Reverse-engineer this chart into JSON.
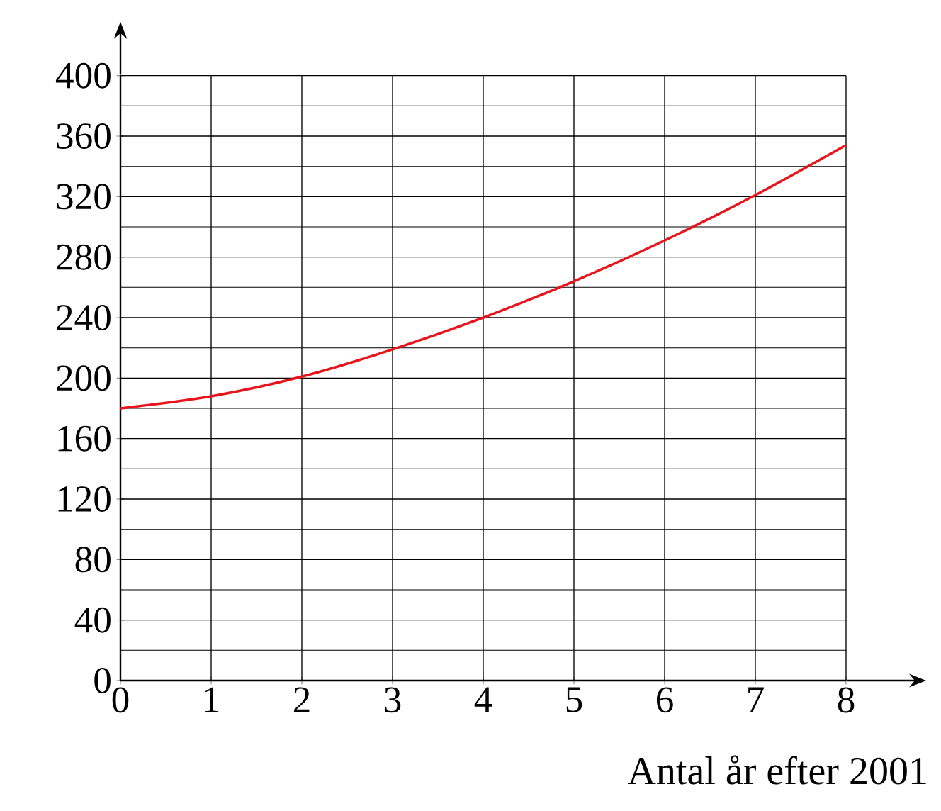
{
  "chart_data": {
    "type": "line",
    "xlabel": "Antal år efter 2001",
    "x": [
      0,
      1,
      2,
      3,
      4,
      5,
      6,
      7,
      8
    ],
    "series": [
      {
        "color": "#e8141c",
        "values": [
          180,
          188,
          201,
          219,
          240,
          264,
          291,
          321,
          354
        ]
      }
    ],
    "xlim": [
      0,
      8
    ],
    "ylim": [
      0,
      400
    ],
    "xticks": [
      0,
      1,
      2,
      3,
      4,
      5,
      6,
      7,
      8
    ],
    "yticks": [
      0,
      40,
      80,
      120,
      160,
      200,
      240,
      280,
      320,
      360,
      400
    ],
    "grid": true,
    "marker": "none",
    "line_style": "solid"
  }
}
